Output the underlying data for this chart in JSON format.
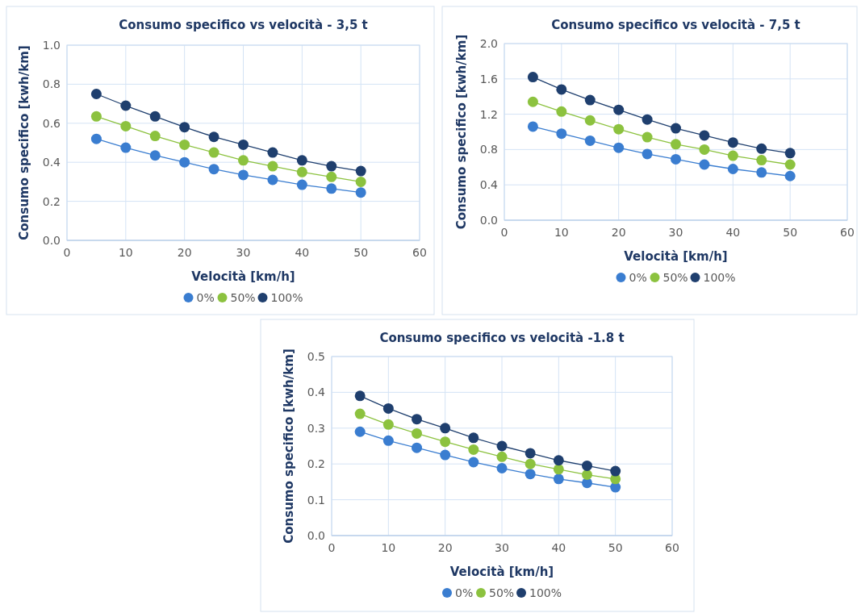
{
  "chart_data": [
    {
      "type": "line",
      "title": "Consumo specifico vs velocità - 3,5 t",
      "xlabel": "Velocità [km/h]",
      "ylabel": "Consumo specifico [kwh/km]",
      "x": [
        5,
        10,
        15,
        20,
        25,
        30,
        35,
        40,
        45,
        50
      ],
      "xlim": [
        0,
        60
      ],
      "xticks": [
        0,
        10,
        20,
        30,
        40,
        50,
        60
      ],
      "ylim": [
        0,
        1
      ],
      "yticks": [
        {
          "value": 0,
          "label": "0.0"
        },
        {
          "value": 0.2,
          "label": "0.2"
        },
        {
          "value": 0.4,
          "label": "0.4"
        },
        {
          "value": 0.6,
          "label": "0.6"
        },
        {
          "value": 0.8,
          "label": "0.8"
        },
        {
          "value": 1,
          "label": "1.0"
        }
      ],
      "grid": true,
      "legend": "bottom",
      "marker": "circle",
      "line_style": "solid",
      "series": [
        {
          "name": "0%",
          "color": "#3a7dd0",
          "values": [
            0.52,
            0.475,
            0.435,
            0.4,
            0.365,
            0.335,
            0.31,
            0.285,
            0.265,
            0.245
          ]
        },
        {
          "name": "50%",
          "color": "#8cc23f",
          "values": [
            0.635,
            0.585,
            0.535,
            0.49,
            0.45,
            0.41,
            0.38,
            0.35,
            0.325,
            0.3
          ]
        },
        {
          "name": "100%",
          "color": "#1f3f6e",
          "values": [
            0.75,
            0.69,
            0.635,
            0.58,
            0.53,
            0.49,
            0.45,
            0.41,
            0.38,
            0.355
          ]
        }
      ]
    },
    {
      "type": "line",
      "title": "Consumo specifico vs velocità - 7,5 t",
      "xlabel": "Velocità [km/h]",
      "ylabel": "Consumo specifico [kwh/km]",
      "x": [
        5,
        10,
        15,
        20,
        25,
        30,
        35,
        40,
        45,
        50
      ],
      "xlim": [
        0,
        60
      ],
      "xticks": [
        0,
        10,
        20,
        30,
        40,
        50,
        60
      ],
      "ylim": [
        0,
        2
      ],
      "yticks": [
        {
          "value": 0,
          "label": "0.0"
        },
        {
          "value": 0.4,
          "label": "0.4"
        },
        {
          "value": 0.8,
          "label": "0.8"
        },
        {
          "value": 1.2,
          "label": "1.2"
        },
        {
          "value": 1.6,
          "label": "1.6"
        },
        {
          "value": 2,
          "label": "2.0"
        }
      ],
      "grid": true,
      "legend": "bottom",
      "marker": "circle",
      "line_style": "solid",
      "series": [
        {
          "name": "0%",
          "color": "#3a7dd0",
          "values": [
            1.06,
            0.98,
            0.9,
            0.82,
            0.75,
            0.69,
            0.63,
            0.58,
            0.54,
            0.5
          ]
        },
        {
          "name": "50%",
          "color": "#8cc23f",
          "values": [
            1.34,
            1.23,
            1.13,
            1.03,
            0.94,
            0.86,
            0.8,
            0.73,
            0.68,
            0.63
          ]
        },
        {
          "name": "100%",
          "color": "#1f3f6e",
          "values": [
            1.62,
            1.48,
            1.36,
            1.25,
            1.14,
            1.04,
            0.96,
            0.88,
            0.81,
            0.76
          ]
        }
      ]
    },
    {
      "type": "line",
      "title": "Consumo specifico vs velocità -1.8 t",
      "xlabel": "Velocità [km/h]",
      "ylabel": "Consumo specifico [kwh/km]",
      "x": [
        5,
        10,
        15,
        20,
        25,
        30,
        35,
        40,
        45,
        50
      ],
      "xlim": [
        0,
        60
      ],
      "xticks": [
        0,
        10,
        20,
        30,
        40,
        50,
        60
      ],
      "ylim": [
        0,
        0.5
      ],
      "yticks": [
        {
          "value": 0,
          "label": "0.0"
        },
        {
          "value": 0.1,
          "label": "0.1"
        },
        {
          "value": 0.2,
          "label": "0.2"
        },
        {
          "value": 0.3,
          "label": "0.3"
        },
        {
          "value": 0.4,
          "label": "0.4"
        },
        {
          "value": 0.5,
          "label": "0.5"
        }
      ],
      "grid": true,
      "legend": "bottom",
      "marker": "circle",
      "line_style": "solid",
      "series": [
        {
          "name": "0%",
          "color": "#3a7dd0",
          "values": [
            0.29,
            0.265,
            0.245,
            0.225,
            0.205,
            0.188,
            0.172,
            0.158,
            0.147,
            0.135
          ]
        },
        {
          "name": "50%",
          "color": "#8cc23f",
          "values": [
            0.34,
            0.31,
            0.285,
            0.262,
            0.24,
            0.22,
            0.2,
            0.185,
            0.17,
            0.158
          ]
        },
        {
          "name": "100%",
          "color": "#1f3f6e",
          "values": [
            0.39,
            0.355,
            0.325,
            0.3,
            0.273,
            0.25,
            0.23,
            0.21,
            0.195,
            0.18
          ]
        }
      ]
    }
  ]
}
